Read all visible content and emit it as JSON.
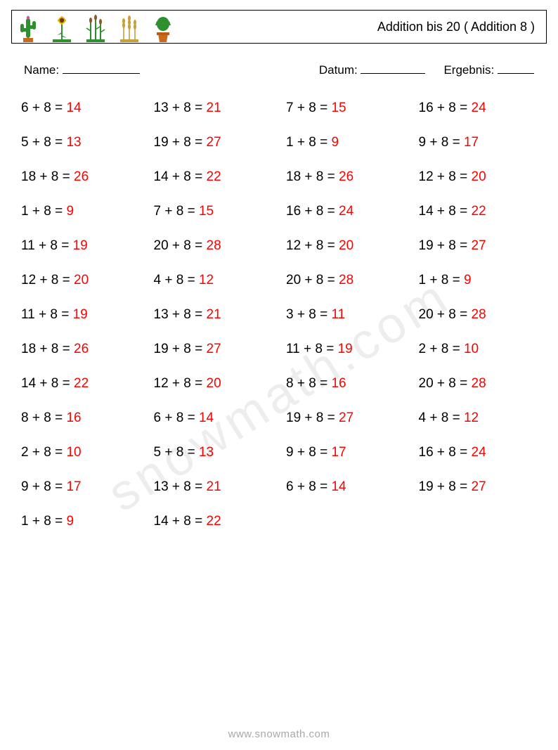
{
  "title": "Addition bis 20 ( Addition 8 )",
  "meta": {
    "name_label": "Name:",
    "date_label": "Datum:",
    "score_label": "Ergebnis:"
  },
  "style": {
    "columns": 4,
    "row_gap": 30,
    "font_size": 19,
    "expr_color": "#000000",
    "ans_color": "#ff0000",
    "operator": "+",
    "addend": 8,
    "equals": " = "
  },
  "problems": [
    [
      6,
      13,
      7,
      16
    ],
    [
      5,
      19,
      1,
      9
    ],
    [
      18,
      14,
      18,
      12
    ],
    [
      1,
      7,
      16,
      14
    ],
    [
      11,
      20,
      12,
      19
    ],
    [
      12,
      4,
      20,
      1
    ],
    [
      11,
      13,
      3,
      20
    ],
    [
      18,
      19,
      11,
      2
    ],
    [
      14,
      12,
      8,
      20
    ],
    [
      8,
      6,
      19,
      4
    ],
    [
      2,
      5,
      9,
      16
    ],
    [
      9,
      13,
      6,
      19
    ],
    [
      1,
      14,
      null,
      null
    ]
  ],
  "watermark": "snowmath.com",
  "footer": "www.snowmath.com"
}
